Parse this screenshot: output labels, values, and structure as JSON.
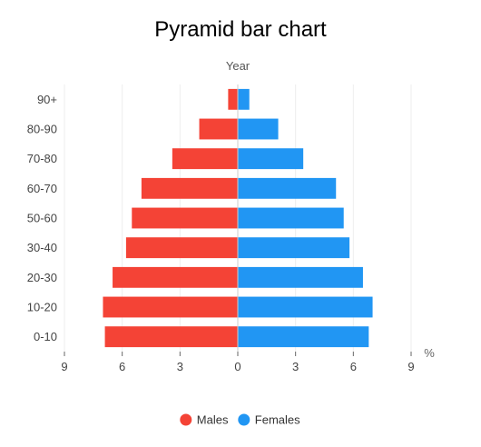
{
  "chart_data": {
    "type": "bar",
    "orientation": "horizontal",
    "layout": "pyramid",
    "title": "Pyramid bar chart",
    "axis_top_label": "Year",
    "x_unit": "%",
    "categories": [
      "0-10",
      "10-20",
      "20-30",
      "30-40",
      "50-60",
      "60-70",
      "70-80",
      "80-90",
      "90+"
    ],
    "series": [
      {
        "name": "Males",
        "color": "#f44336",
        "values": [
          6.9,
          7.0,
          6.5,
          5.8,
          5.5,
          5.0,
          3.4,
          2.0,
          0.5
        ]
      },
      {
        "name": "Females",
        "color": "#2196f3",
        "values": [
          6.8,
          7.0,
          6.5,
          5.8,
          5.5,
          5.1,
          3.4,
          2.1,
          0.6
        ]
      }
    ],
    "xlim": [
      -9,
      9
    ],
    "x_ticks": [
      -9,
      -6,
      -3,
      0,
      3,
      6,
      9
    ],
    "x_tick_labels": [
      "9",
      "6",
      "3",
      "0",
      "3",
      "6",
      "9"
    ],
    "grid": true,
    "legend_position": "bottom"
  }
}
